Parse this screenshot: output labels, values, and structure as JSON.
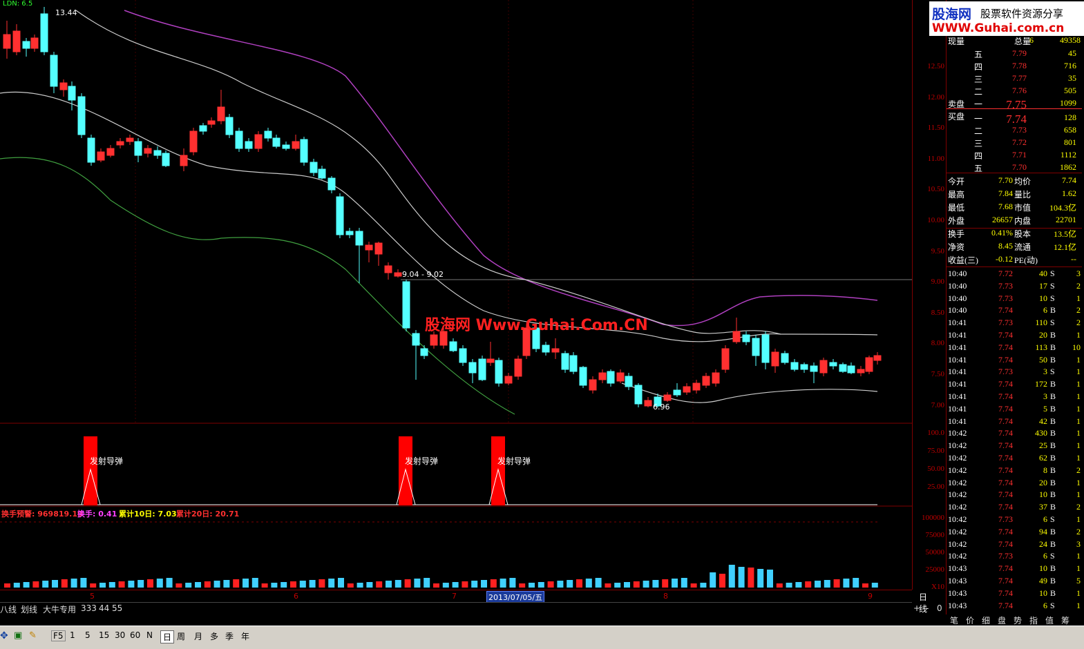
{
  "indicator_header": "LDN: 6.5",
  "price_labels": {
    "high_mark": "13.44",
    "range_mark": "9.04 - 9.02",
    "low_mark": "6.96",
    "watermark": "股海网 Www.Guhai.Com.CN"
  },
  "signal_label": "发射导弹",
  "volume_header": {
    "t1": "换手预警: 969819.19",
    "t2": "换手: 0.41",
    "t3": "累计10日: 7.03",
    "t4": "累计20日: 20.71"
  },
  "price_axis": [
    "12.50",
    "12.00",
    "11.50",
    "11.00",
    "10.50",
    "10.00",
    "9.50",
    "9.00",
    "8.50",
    "8.00",
    "7.50",
    "7.00"
  ],
  "sig_axis": [
    "100.0",
    "75.00",
    "50.00",
    "25.00"
  ],
  "vol_axis": [
    "100000",
    "75000",
    "50000",
    "25000",
    "X10"
  ],
  "date_ticks": [
    "5",
    "6",
    "7",
    "8",
    "9"
  ],
  "date_current": "2013/07/05/五",
  "tabs": [
    "八线",
    "划线",
    "大牛专用",
    "333",
    "44",
    "55"
  ],
  "period_label": "日线",
  "zoom": {
    "plus": "+",
    "minus": "-",
    "zero": "0"
  },
  "logo": {
    "cn": "股海网",
    "slogan": "股票软件资源分享",
    "url": "WWW.Guhai.com.cn"
  },
  "quote": {
    "sell": [
      [
        "五",
        "7.79",
        "45"
      ],
      [
        "四",
        "7.78",
        "716"
      ],
      [
        "三",
        "7.77",
        "35"
      ],
      [
        "二",
        "7.76",
        "505"
      ],
      [
        "一",
        "7.75",
        "1099"
      ]
    ],
    "buy": [
      [
        "一",
        "7.74",
        "128"
      ],
      [
        "二",
        "7.73",
        "658"
      ],
      [
        "三",
        "7.72",
        "801"
      ],
      [
        "四",
        "7.71",
        "1112"
      ],
      [
        "五",
        "7.70",
        "1862"
      ]
    ],
    "sell_title": "卖盘",
    "buy_title": "买盘",
    "stats": [
      [
        "今开",
        "7.70",
        "均价",
        "7.74"
      ],
      [
        "最高",
        "7.84",
        "量比",
        "1.62"
      ],
      [
        "最低",
        "7.68",
        "市值",
        "104.3亿"
      ],
      [
        "外盘",
        "26657",
        "内盘",
        "22701"
      ],
      [
        "换手",
        "0.41%",
        "股本",
        "13.5亿"
      ],
      [
        "净资",
        "8.45",
        "流通",
        "12.1亿"
      ],
      [
        "收益(三)",
        "-0.12",
        "PE(动)",
        "--"
      ]
    ],
    "ticks": [
      [
        "10:40",
        "7.72",
        "40",
        "S",
        "3"
      ],
      [
        "10:40",
        "7.73",
        "17",
        "S",
        "2"
      ],
      [
        "10:40",
        "7.73",
        "10",
        "S",
        "1"
      ],
      [
        "10:40",
        "7.74",
        "6",
        "B",
        "2"
      ],
      [
        "10:41",
        "7.73",
        "110",
        "S",
        "2"
      ],
      [
        "10:41",
        "7.74",
        "20",
        "B",
        "1"
      ],
      [
        "10:41",
        "7.74",
        "113",
        "B",
        "10"
      ],
      [
        "10:41",
        "7.74",
        "50",
        "B",
        "1"
      ],
      [
        "10:41",
        "7.73",
        "3",
        "S",
        "1"
      ],
      [
        "10:41",
        "7.74",
        "172",
        "B",
        "1"
      ],
      [
        "10:41",
        "7.74",
        "3",
        "B",
        "1"
      ],
      [
        "10:41",
        "7.74",
        "5",
        "B",
        "1"
      ],
      [
        "10:41",
        "7.74",
        "42",
        "B",
        "1"
      ],
      [
        "10:42",
        "7.74",
        "430",
        "B",
        "1"
      ],
      [
        "10:42",
        "7.74",
        "25",
        "B",
        "1"
      ],
      [
        "10:42",
        "7.74",
        "62",
        "B",
        "1"
      ],
      [
        "10:42",
        "7.74",
        "8",
        "B",
        "2"
      ],
      [
        "10:42",
        "7.74",
        "20",
        "B",
        "1"
      ],
      [
        "10:42",
        "7.74",
        "10",
        "B",
        "1"
      ],
      [
        "10:42",
        "7.74",
        "37",
        "B",
        "2"
      ],
      [
        "10:42",
        "7.73",
        "6",
        "S",
        "1"
      ],
      [
        "10:42",
        "7.74",
        "94",
        "B",
        "2"
      ],
      [
        "10:42",
        "7.74",
        "24",
        "B",
        "3"
      ],
      [
        "10:42",
        "7.73",
        "6",
        "S",
        "1"
      ],
      [
        "10:43",
        "7.74",
        "10",
        "B",
        "1"
      ],
      [
        "10:43",
        "7.74",
        "49",
        "B",
        "5"
      ],
      [
        "10:43",
        "7.74",
        "10",
        "B",
        "1"
      ],
      [
        "10:43",
        "7.74",
        "6",
        "S",
        "1"
      ]
    ],
    "top_row": [
      "现量",
      "6",
      "总量",
      "49358"
    ],
    "bottom_tabs": [
      "笔",
      "价",
      "细",
      "盘",
      "势",
      "指",
      "值",
      "筹"
    ]
  },
  "bottom_bar": [
    "F5",
    "1",
    "5",
    "15",
    "30",
    "60",
    "N",
    "日",
    "周",
    "月",
    "多",
    "季",
    "年"
  ]
}
